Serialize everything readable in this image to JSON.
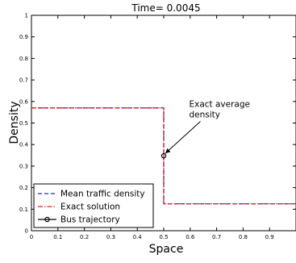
{
  "chart_data": {
    "type": "line",
    "title": "Time= 0.0045",
    "xlabel": "Space",
    "ylabel": "Density",
    "xlim": [
      0,
      1
    ],
    "ylim": [
      0,
      1
    ],
    "x_ticks": [
      "0",
      "0.1",
      "0.2",
      "0.3",
      "0.4",
      "0.5",
      "0.6",
      "0.7",
      "0.8",
      "0.9"
    ],
    "y_ticks": [
      "0",
      "0.1",
      "0.2",
      "0.3",
      "0.4",
      "0.5",
      "0.6",
      "0.7",
      "0.8",
      "0.9",
      "1"
    ],
    "grid": false,
    "legend_position": "bottom-left",
    "series": [
      {
        "name": "Mean traffic density",
        "style": "dashed",
        "color": "#1f2fbf",
        "x": [
          0,
          0.5,
          0.5,
          1
        ],
        "y": [
          0.57,
          0.57,
          0.125,
          0.125
        ]
      },
      {
        "name": "Exact solution",
        "style": "dashdot",
        "color": "#e02020",
        "x": [
          0,
          0.5,
          0.5,
          1
        ],
        "y": [
          0.57,
          0.57,
          0.125,
          0.125
        ]
      },
      {
        "name": "Bus trajectory",
        "style": "solid-marker",
        "color": "#000000",
        "x": [
          0.5
        ],
        "y": [
          0.348
        ]
      }
    ],
    "annotation": {
      "lines": [
        "Exact average",
        "density"
      ],
      "point": [
        0.5,
        0.348
      ],
      "text_anchor": [
        0.596,
        0.575
      ]
    }
  }
}
